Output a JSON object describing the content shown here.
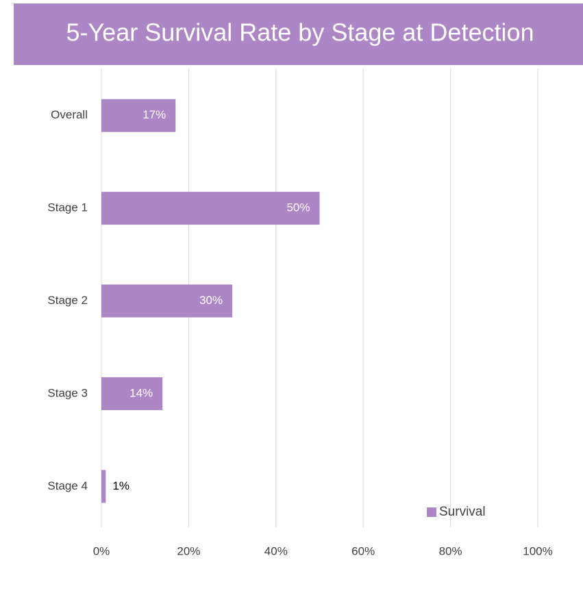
{
  "chart_data": {
    "type": "bar",
    "orientation": "horizontal",
    "title": "5-Year Survival Rate by Stage at Detection",
    "categories": [
      "Overall",
      "Stage 1",
      "Stage 2",
      "Stage 3",
      "Stage 4"
    ],
    "series": [
      {
        "name": "Survival",
        "color": "#ad86c6",
        "values": [
          17,
          50,
          30,
          14,
          1
        ],
        "value_labels": [
          "17%",
          "50%",
          "30%",
          "14%",
          "1%"
        ]
      }
    ],
    "xlim": [
      0,
      100
    ],
    "xticks": [
      {
        "value": 0,
        "label": "0%"
      },
      {
        "value": 20,
        "label": "20%"
      },
      {
        "value": 40,
        "label": "40%"
      },
      {
        "value": 60,
        "label": "60%"
      },
      {
        "value": 80,
        "label": "80%"
      },
      {
        "value": 100,
        "label": "100%"
      }
    ],
    "grid": true,
    "legend": "lower right"
  }
}
